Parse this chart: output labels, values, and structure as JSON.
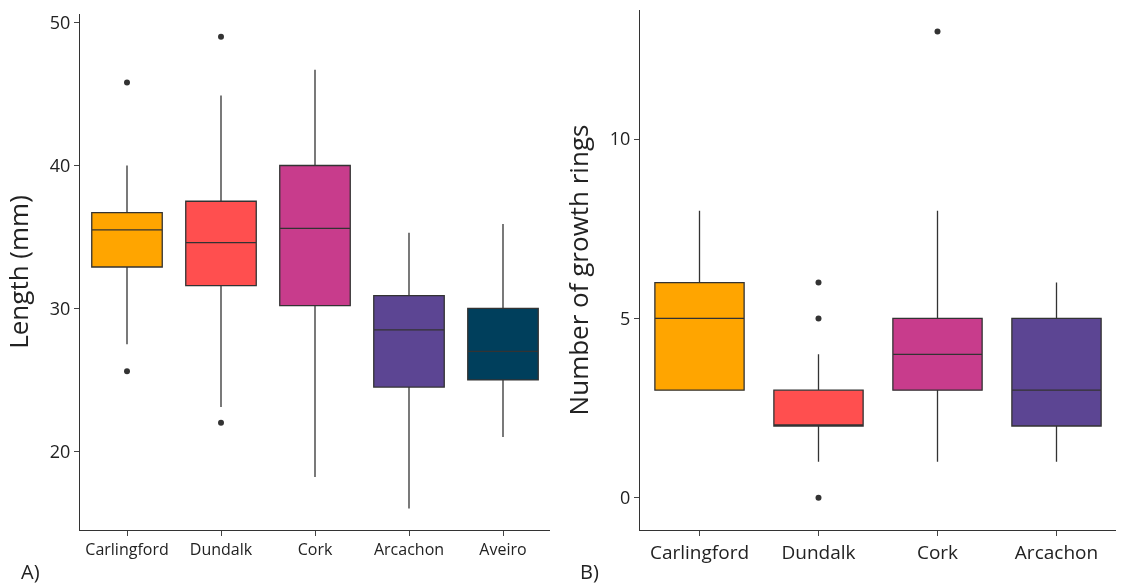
{
  "chart_data": [
    {
      "type": "box",
      "ylabel": "Length (mm)",
      "categories": [
        "Carlingford",
        "Dundalk",
        "Cork",
        "Arcachon",
        "Aveiro"
      ],
      "colors": [
        "#ffa500",
        "#ff4f4f",
        "#c83c8c",
        "#5c4593",
        "#003f5c"
      ],
      "ylim": [
        14.5,
        50.6
      ],
      "yticks": [
        20,
        30,
        40,
        50
      ],
      "annotations": [
        "A)"
      ],
      "boxes": [
        {
          "low": 27.5,
          "q1": 32.9,
          "median": 35.5,
          "q3": 36.7,
          "high": 40,
          "outliers": [
            45.8,
            25.6
          ]
        },
        {
          "low": 23.1,
          "q1": 31.6,
          "median": 34.6,
          "q3": 37.5,
          "high": 44.9,
          "outliers": [
            49.0,
            22.0
          ]
        },
        {
          "low": 18.2,
          "q1": 30.2,
          "median": 35.6,
          "q3": 40,
          "high": 46.7
        },
        {
          "low": 16.0,
          "q1": 24.5,
          "median": 28.5,
          "q3": 30.9,
          "high": 35.3
        },
        {
          "low": 21.0,
          "q1": 25,
          "median": 27,
          "q3": 30,
          "high": 35.9
        }
      ]
    },
    {
      "type": "box",
      "ylabel": "Number of growth rings",
      "categories": [
        "Carlingford",
        "Dundalk",
        "Cork",
        "Arcachon"
      ],
      "colors": [
        "#ffa500",
        "#ff4f4f",
        "#c83c8c",
        "#5c4593"
      ],
      "ylim": [
        -0.9,
        13.6
      ],
      "yticks": [
        0,
        5,
        10
      ],
      "annotations": [
        "B)"
      ],
      "boxes": [
        {
          "low": 3,
          "q1": 3,
          "median": 5,
          "q3": 6,
          "high": 8
        },
        {
          "low": 1,
          "q1": 2,
          "median": 2,
          "q3": 3,
          "high": 4,
          "outliers": [
            6,
            5,
            0
          ]
        },
        {
          "low": 1,
          "q1": 3,
          "median": 4,
          "q3": 5,
          "high": 8,
          "outliers": [
            13
          ]
        },
        {
          "low": 1,
          "q1": 2,
          "median": 3,
          "q3": 5,
          "high": 6
        }
      ]
    }
  ]
}
